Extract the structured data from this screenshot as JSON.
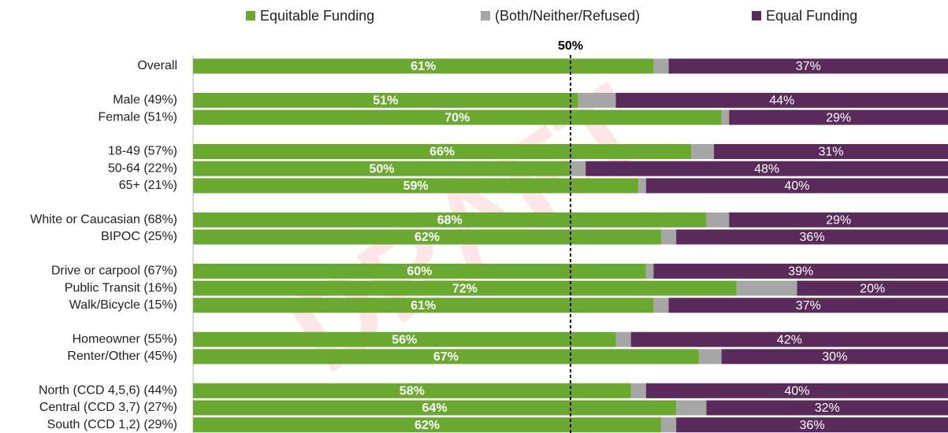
{
  "chart_data": {
    "type": "stacked-bar-horizontal",
    "watermark": "DRAFT",
    "categories": [
      "Overall",
      null,
      "Male (49%)",
      "Female (51%)",
      null,
      "18-49 (57%)",
      "50-64 (22%)",
      "65+ (21%)",
      null,
      "White or Caucasian (68%)",
      "BIPOC (25%)",
      null,
      "Drive or carpool (67%)",
      "Public Transit (16%)",
      "Walk/Bicycle (15%)",
      null,
      "Homeowner (55%)",
      "Renter/Other (45%)",
      null,
      "North (CCD 4,5,6) (44%)",
      "Central (CCD 3,7) (27%)",
      "South (CCD 1,2) (29%)"
    ],
    "series": [
      {
        "name": "Equitable Funding",
        "color": "#6aa92f",
        "values": [
          61,
          null,
          51,
          70,
          null,
          66,
          50,
          59,
          null,
          68,
          62,
          null,
          60,
          72,
          61,
          null,
          56,
          67,
          null,
          58,
          64,
          62
        ],
        "value_labels": [
          "61%",
          null,
          "51%",
          "70%",
          null,
          "66%",
          "50%",
          "59%",
          null,
          "68%",
          "62%",
          null,
          "60%",
          "72%",
          "61%",
          null,
          "56%",
          "67%",
          null,
          "58%",
          "64%",
          "62%"
        ]
      },
      {
        "name": "(Both/Neither/Refused)",
        "color": "#a6a6a6",
        "values": [
          2,
          null,
          5,
          1,
          null,
          3,
          2,
          1,
          null,
          3,
          2,
          null,
          1,
          8,
          2,
          null,
          2,
          3,
          null,
          2,
          4,
          2
        ]
      },
      {
        "name": "Equal Funding",
        "color": "#5a2a5a",
        "values": [
          37,
          null,
          44,
          29,
          null,
          31,
          48,
          40,
          null,
          29,
          36,
          null,
          39,
          20,
          37,
          null,
          42,
          30,
          null,
          40,
          32,
          36
        ],
        "value_labels": [
          "37%",
          null,
          "44%",
          "29%",
          null,
          "31%",
          "48%",
          "40%",
          null,
          "29%",
          "36%",
          null,
          "39%",
          "20%",
          "37%",
          null,
          "42%",
          "30%",
          null,
          "40%",
          "32%",
          "36%"
        ]
      }
    ],
    "xlim": [
      0,
      100
    ],
    "reference_line": {
      "value": 50,
      "label": "50%"
    }
  }
}
